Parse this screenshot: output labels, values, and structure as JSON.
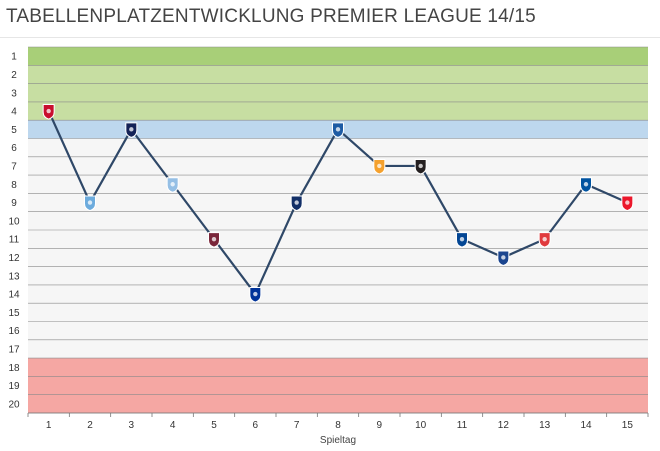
{
  "title": "TABELLENPLATZENTWICKLUNG PREMIER LEAGUE 14/15",
  "chart_data": {
    "type": "line",
    "xlabel": "Spieltag",
    "ylabel": "",
    "x": [
      1,
      2,
      3,
      4,
      5,
      6,
      7,
      8,
      9,
      10,
      11,
      12,
      13,
      14,
      15
    ],
    "y_ticks": [
      1,
      2,
      3,
      4,
      5,
      6,
      7,
      8,
      9,
      10,
      11,
      12,
      13,
      14,
      15,
      16,
      17,
      18,
      19,
      20
    ],
    "ylim": [
      1,
      20
    ],
    "y_reversed": true,
    "grid": true,
    "legend": "none",
    "series": [
      {
        "values": [
          4,
          9,
          5,
          8,
          11,
          14,
          9,
          5,
          7,
          7,
          11,
          12,
          11,
          8,
          9
        ],
        "color": "#2f4868",
        "markers": [
          "southampton-crest",
          "manchester-city-crest",
          "tottenham-crest",
          "aston-villa-crest",
          "west-ham-crest",
          "everton-crest",
          "west-brom-crest",
          "qpr-crest",
          "hull-crest",
          "newcastle-crest",
          "chelsea-crest",
          "crystal-palace-crest",
          "stoke-crest",
          "leicester-crest",
          "sunderland-crest"
        ]
      }
    ],
    "zones": [
      {
        "from": 1,
        "to": 1,
        "color": "#a8cf78"
      },
      {
        "from": 2,
        "to": 4,
        "color": "#c7dea2"
      },
      {
        "from": 5,
        "to": 5,
        "color": "#bdd7ee"
      },
      {
        "from": 6,
        "to": 17,
        "color": "#f6f6f6"
      },
      {
        "from": 18,
        "to": 20,
        "color": "#f5a7a3"
      }
    ],
    "marker_colors": [
      "#c8102e",
      "#6cabdd",
      "#132257",
      "#95bfe5",
      "#7a263a",
      "#003399",
      "#122f67",
      "#1d5ba4",
      "#f5a12d",
      "#241f20",
      "#034694",
      "#1b458f",
      "#e03a3e",
      "#0053a0",
      "#eb172b"
    ]
  }
}
